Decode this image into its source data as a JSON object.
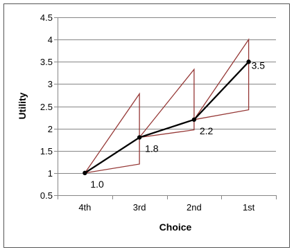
{
  "chart_data": {
    "type": "line",
    "xlabel": "Choice",
    "ylabel": "Utility",
    "categories": [
      "4th",
      "3rd",
      "2nd",
      "1st"
    ],
    "ylim": [
      0.5,
      4.5
    ],
    "yticks": [
      "0.5",
      "1",
      "1.5",
      "2",
      "2.5",
      "3",
      "3.5",
      "4",
      "4.5"
    ],
    "grid": true,
    "series": [
      {
        "values": [
          1.0,
          1.8,
          2.2,
          3.5
        ],
        "color": "#000000"
      }
    ],
    "data_labels": [
      "1.0",
      "1.8",
      "2.2",
      "3.5"
    ],
    "envelopes": [
      {
        "upper": [
          1.0,
          2.78
        ],
        "lower": [
          1.0,
          1.2
        ]
      },
      {
        "upper": [
          1.8,
          3.33
        ],
        "lower": [
          1.8,
          1.97
        ]
      },
      {
        "upper": [
          2.2,
          4.0
        ],
        "lower": [
          2.2,
          2.42
        ]
      }
    ],
    "envelope_color": "#953735",
    "frame_color": "#555555",
    "grid_color": "#858585"
  }
}
